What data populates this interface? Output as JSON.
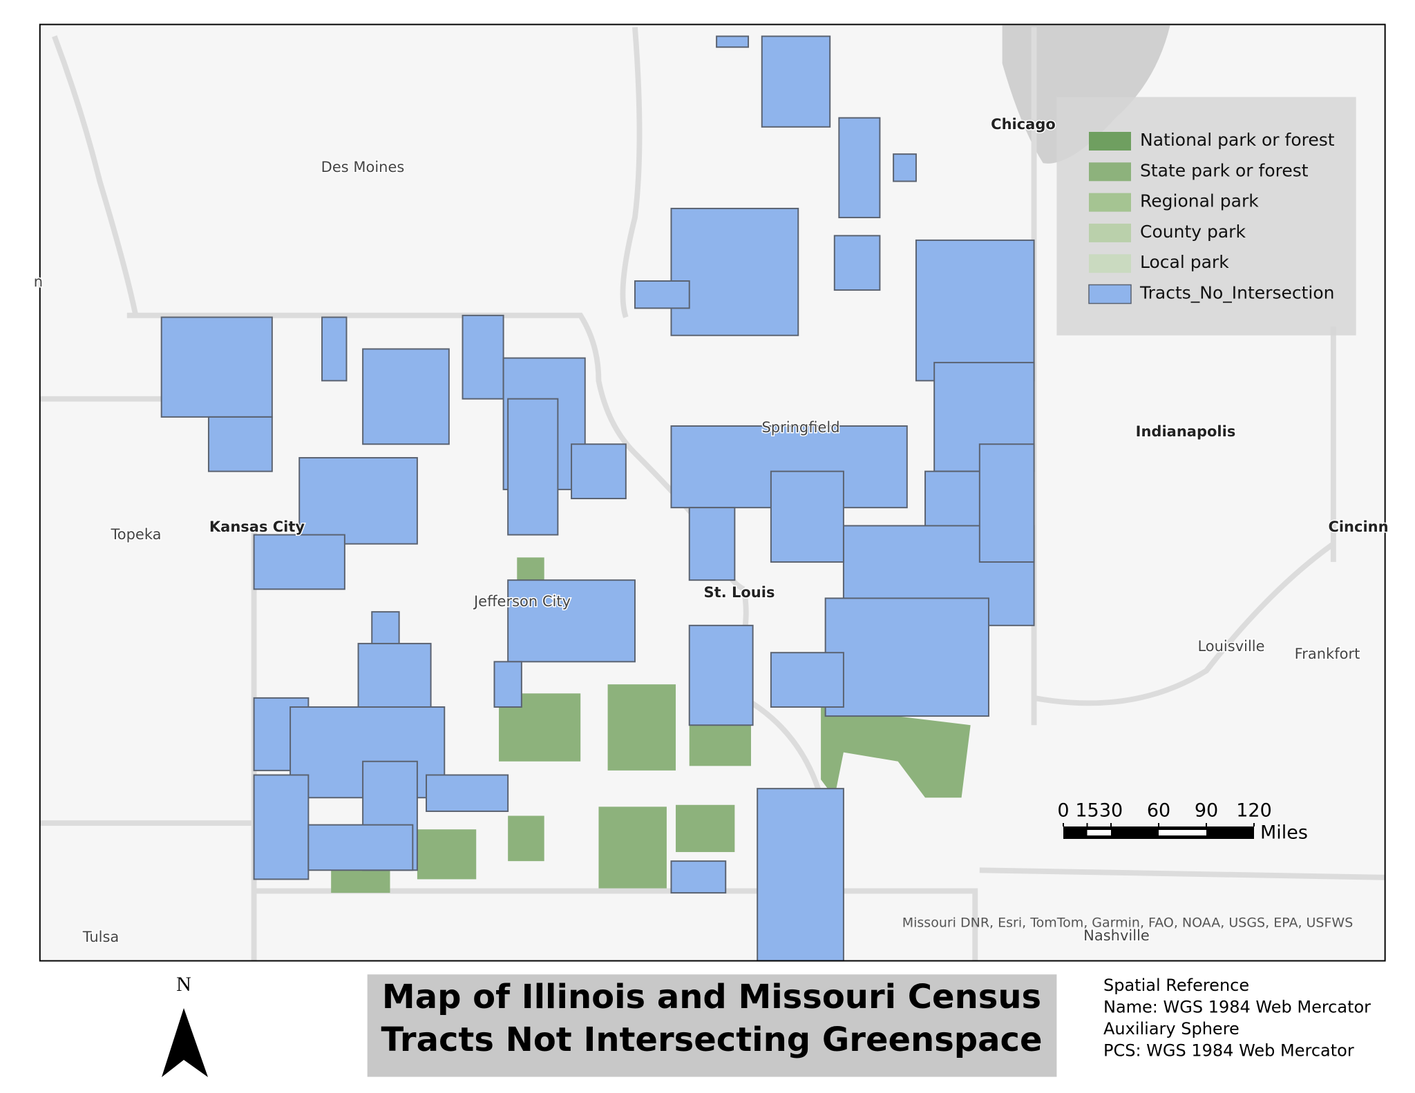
{
  "map": {
    "title": [
      "Map of Illinois and Missouri Census",
      "Tracts Not Intersecting Greenspace"
    ],
    "legend": [
      {
        "label": "National park or forest",
        "color": "#6f9f60"
      },
      {
        "label": "State park or forest",
        "color": "#8db27c"
      },
      {
        "label": "Regional park",
        "color": "#a5c492"
      },
      {
        "label": "County park",
        "color": "#bad0ab"
      },
      {
        "label": "Local park",
        "color": "#cadac0"
      },
      {
        "label": "Tracts_No_Intersection",
        "color": "#8fb4ec"
      }
    ],
    "cities": [
      "Des Moines",
      "Chicago",
      "Springfield",
      "Indianapolis",
      "Topeka",
      "Kansas City",
      "Cincinn",
      "Jefferson City",
      "St. Louis",
      "Louisville",
      "Frankfort",
      "Tulsa",
      "Nashville",
      "n"
    ],
    "scale_bar": {
      "ticks": [
        0,
        15,
        30,
        60,
        90,
        120
      ],
      "unit": "Miles"
    },
    "attribution": "Missouri DNR, Esri, TomTom, Garmin, FAO, NOAA, USGS, EPA, USFWS",
    "spatial_reference": [
      "Spatial Reference",
      "Name: WGS 1984 Web Mercator",
      "Auxiliary Sphere",
      "PCS: WGS 1984 Web Mercator"
    ],
    "north": "N"
  }
}
